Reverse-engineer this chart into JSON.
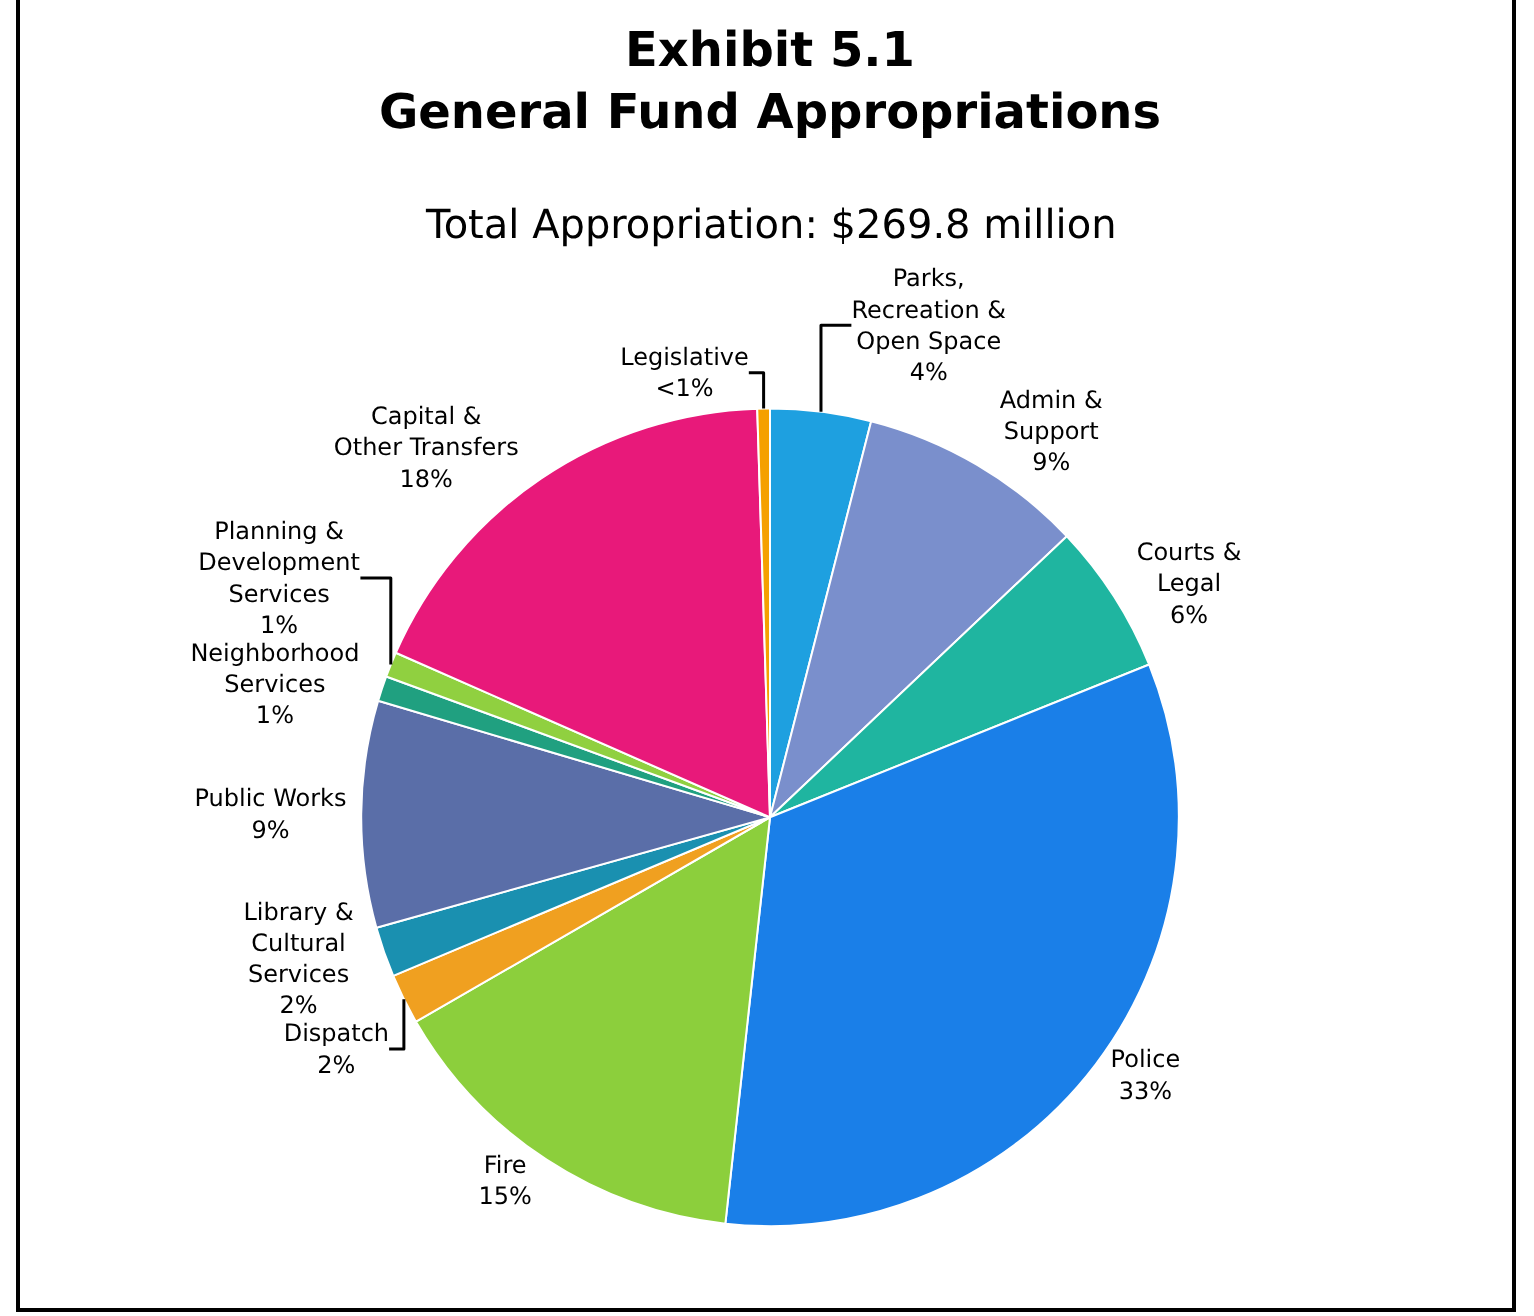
{
  "chart_data": {
    "type": "pie",
    "title": "Exhibit 5.1\nGeneral Fund Appropriations",
    "subtitle": "Total Appropriation: $269.8 million",
    "categories": [
      "Parks, Recreation & Open Space",
      "Admin & Support",
      "Courts & Legal",
      "Police",
      "Fire",
      "Dispatch",
      "Library & Cultural Services",
      "Public Works",
      "Neighborhood Services",
      "Planning & Development Services",
      "Capital & Other Transfers",
      "Legislative"
    ],
    "values": [
      4,
      9,
      6,
      33,
      15,
      2,
      2,
      9,
      1,
      1,
      18,
      0.5
    ],
    "value_labels": [
      "4%",
      "9%",
      "6%",
      "33%",
      "15%",
      "2%",
      "2%",
      "9%",
      "1%",
      "1%",
      "18%",
      "<1%"
    ],
    "colors": [
      "#1ea0e0",
      "#7a8fcc",
      "#1fb5a0",
      "#1a7fe8",
      "#8ccf3c",
      "#f0a020",
      "#1a90b0",
      "#5a6ea8",
      "#20a080",
      "#90d040",
      "#e8197a",
      "#f5a000"
    ],
    "legend": false
  }
}
